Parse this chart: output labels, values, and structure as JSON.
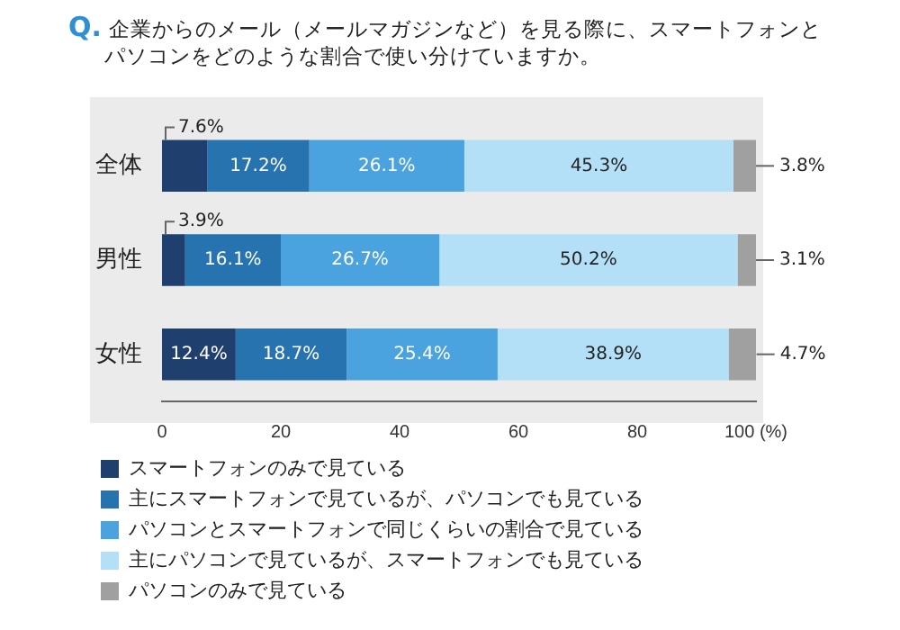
{
  "chart_data": {
    "type": "bar",
    "orientation": "horizontal",
    "stacked": true,
    "title": "Q. 企業からのメール（メールマガジンなど）を見る際に、スマートフォンとパソコンをどのような割合で使い分けていますか。",
    "categories": [
      "全体",
      "男性",
      "女性"
    ],
    "series": [
      {
        "name": "スマートフォンのみで見ている",
        "color": "#1f3f6e",
        "values": [
          7.6,
          3.9,
          12.4
        ],
        "value_labels": [
          "7.6%",
          "3.9%",
          "12.4%"
        ]
      },
      {
        "name": "主にスマートフォンで見ているが、パソコンでも見ている",
        "color": "#2673b0",
        "values": [
          17.2,
          16.1,
          18.7
        ],
        "value_labels": [
          "17.2%",
          "16.1%",
          "18.7%"
        ]
      },
      {
        "name": "パソコンとスマートフォンで同じくらいの割合で見ている",
        "color": "#4aa3de",
        "values": [
          26.1,
          26.7,
          25.4
        ],
        "value_labels": [
          "26.1%",
          "26.7%",
          "25.4%"
        ]
      },
      {
        "name": "主にパソコンで見ているが、スマートフォンでも見ている",
        "color": "#b3e0f7",
        "values": [
          45.3,
          50.2,
          38.9
        ],
        "value_labels": [
          "45.3%",
          "50.2%",
          "38.9%"
        ]
      },
      {
        "name": "パソコンのみで見ている",
        "color": "#a0a0a0",
        "values": [
          3.8,
          3.1,
          4.7
        ],
        "value_labels": [
          "3.8%",
          "3.1%",
          "4.7%"
        ]
      }
    ],
    "xlim": [
      0,
      100
    ],
    "xticks": [
      0,
      20,
      40,
      60,
      80,
      {
        "value": 100,
        "label": "100 (%)"
      }
    ],
    "grid": false,
    "legend": "bottom"
  }
}
